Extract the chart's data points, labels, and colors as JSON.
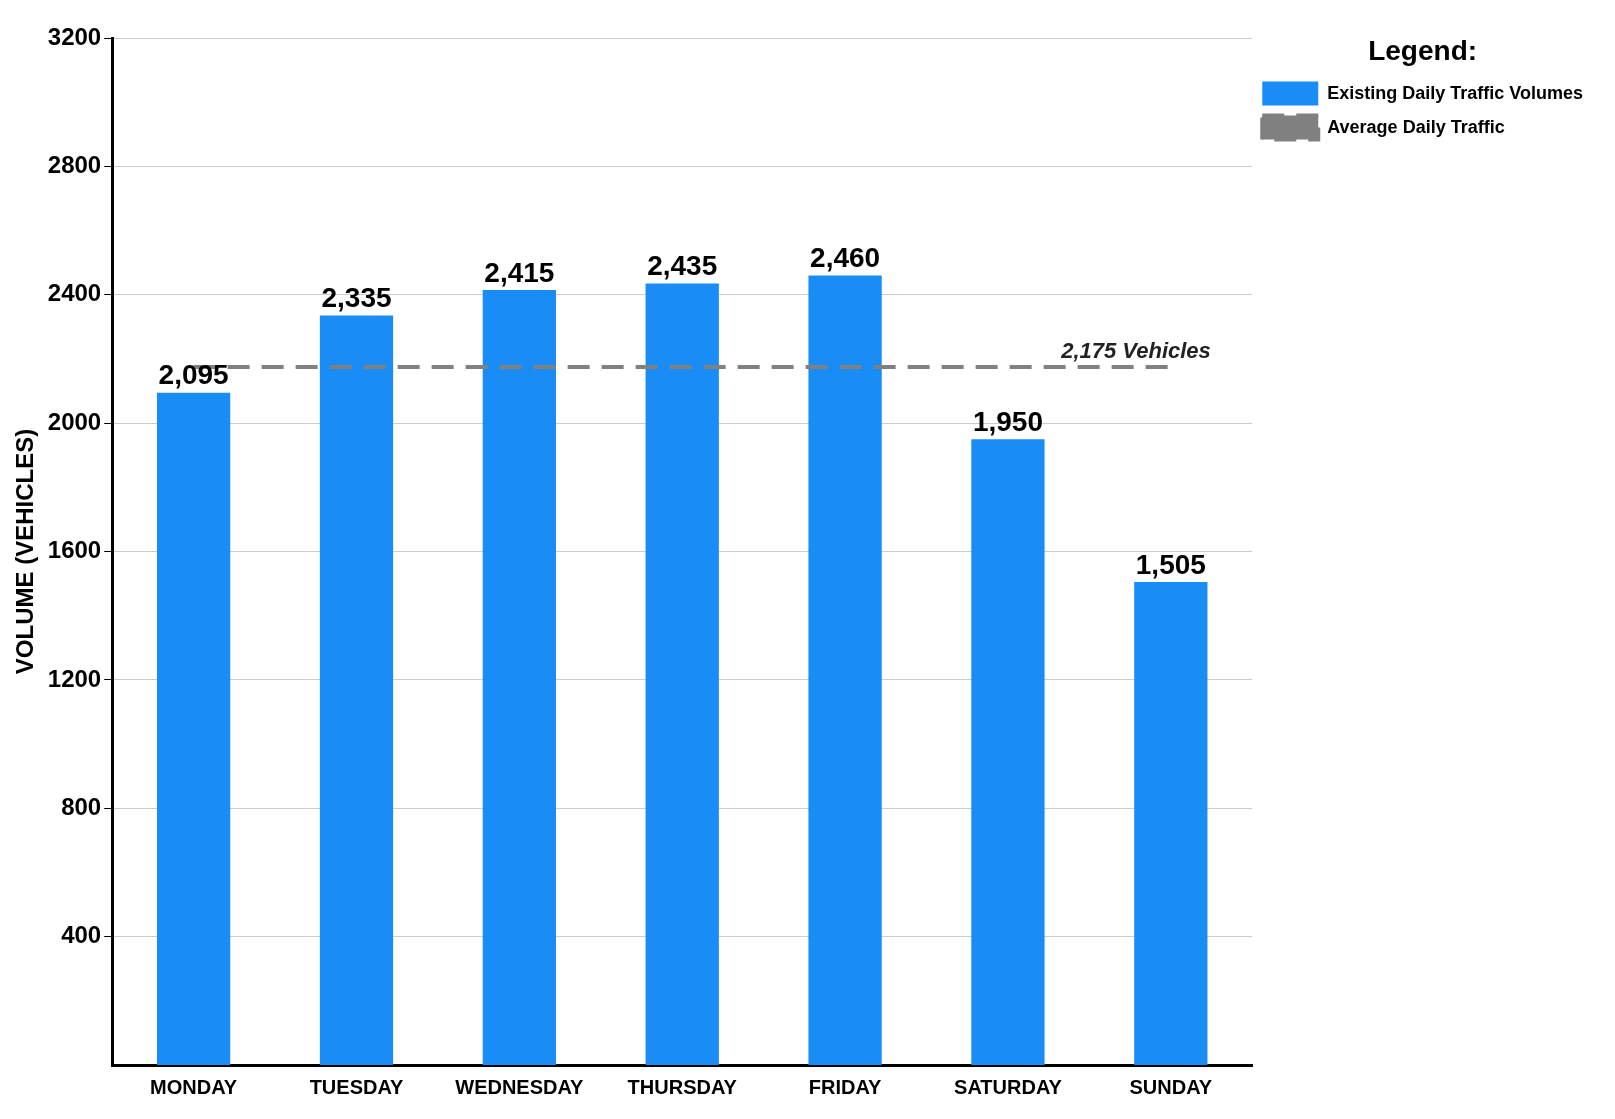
{
  "chart_data": {
    "type": "bar",
    "ylabel": "VOLUME (VEHICLES)",
    "legend_title": "Legend:",
    "categories": [
      "MONDAY",
      "TUESDAY",
      "WEDNESDAY",
      "THURSDAY",
      "FRIDAY",
      "SATURDAY",
      "SUNDAY"
    ],
    "series": [
      {
        "name": "Existing Daily Traffic Volumes",
        "color": "#1a8cf5",
        "values": [
          2095,
          2335,
          2415,
          2435,
          2460,
          1950,
          1505
        ],
        "value_labels": [
          "2,095",
          "2,335",
          "2,415",
          "2,435",
          "2,460",
          "1,950",
          "1,505"
        ]
      },
      {
        "type": "line",
        "name": "Average Daily Traffic",
        "color": "#808080",
        "line_style": "dashed",
        "marker": "none",
        "values": [
          2175,
          2175,
          2175,
          2175,
          2175,
          2175,
          2175
        ]
      }
    ],
    "annotations": [
      {
        "text": "2,175 Vehicles",
        "x": "SUNDAY",
        "y": 2175
      }
    ],
    "ylim": [
      0,
      3200
    ],
    "yticks": [
      400,
      800,
      1200,
      1600,
      2000,
      2400,
      2800,
      3200
    ],
    "grid": "y",
    "legend": "top right"
  }
}
